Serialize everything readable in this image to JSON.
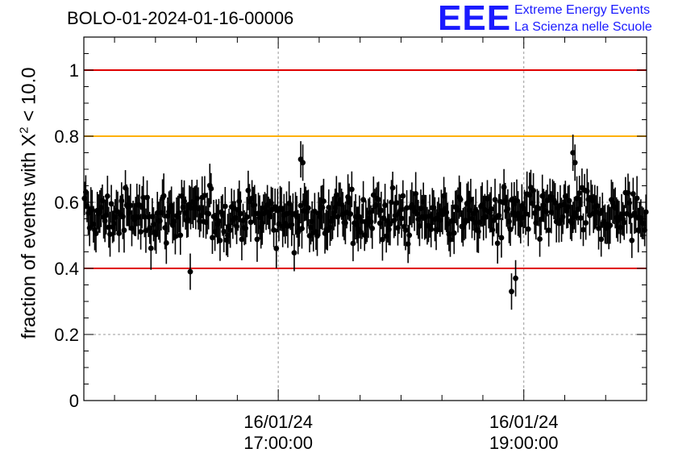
{
  "title": "BOLO-01-2024-01-16-00006",
  "logo": {
    "mark": "EEE",
    "line1": "Extreme Energy Events",
    "line2": "La Scienza nelle Scuole",
    "color": "#1a1aff"
  },
  "chart_data": {
    "type": "scatter",
    "ylabel_prefix": "fraction of events with Χ",
    "ylabel_sup": "2",
    "ylabel_suffix": " < 10.0",
    "ylim": [
      0,
      1.1
    ],
    "yticks": [
      0,
      0.2,
      0.4,
      0.6,
      0.8,
      1
    ],
    "ytick_labels": [
      "0",
      "0.2",
      "0.4",
      "0.6",
      "0.8",
      "1"
    ],
    "xlim": [
      "2024-01-16 15:25",
      "2024-01-16 20:00"
    ],
    "xticks": [
      {
        "time": "2024-01-16 17:00",
        "date": "16/01/24",
        "clock": "17:00:00"
      },
      {
        "time": "2024-01-16 19:00",
        "date": "16/01/24",
        "clock": "19:00:00"
      }
    ],
    "grid": true,
    "reference_lines": [
      {
        "y": 1.0,
        "color": "#e00000"
      },
      {
        "y": 0.8,
        "color": "#ffb000"
      },
      {
        "y": 0.4,
        "color": "#e00000"
      }
    ],
    "series": [
      {
        "marker_color": "#000000",
        "mean": 0.56,
        "spread": 0.055,
        "error": 0.055,
        "count": 440,
        "note_outliers": [
          {
            "time": "2024-01-16 16:17",
            "y": 0.39
          },
          {
            "time": "2024-01-16 18:54",
            "y": 0.33
          },
          {
            "time": "2024-01-16 18:56",
            "y": 0.37
          },
          {
            "time": "2024-01-16 17:12",
            "y": 0.72
          },
          {
            "time": "2024-01-16 17:11",
            "y": 0.73
          },
          {
            "time": "2024-01-16 19:24",
            "y": 0.75
          },
          {
            "time": "2024-01-16 19:25",
            "y": 0.72
          }
        ]
      }
    ]
  }
}
